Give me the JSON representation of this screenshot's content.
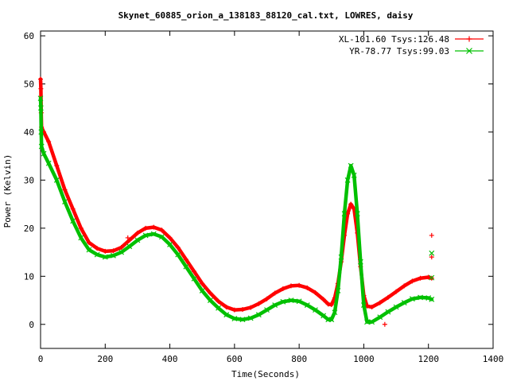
{
  "chart_data": {
    "type": "line",
    "title": "Skynet_60885_orion_a_138183_88120_cal.txt, LOWRES, daisy",
    "xlabel": "Time(Seconds)",
    "ylabel": "Power (Kelvin)",
    "xlim": [
      0,
      1400
    ],
    "ylim": [
      -5,
      61
    ],
    "x_ticks": [
      0,
      200,
      400,
      600,
      800,
      1000,
      1200,
      1400
    ],
    "y_ticks": [
      0,
      10,
      20,
      30,
      40,
      50,
      60
    ],
    "grid": false,
    "legend_position": "top-right",
    "series": [
      {
        "name": "XL-101.60 Tsys:126.48",
        "color": "#ff0000",
        "marker": "plus",
        "points": [
          [
            0,
            51
          ],
          [
            1,
            49
          ],
          [
            2,
            44
          ],
          [
            3,
            41
          ],
          [
            10,
            40
          ],
          [
            25,
            38
          ],
          [
            50,
            33
          ],
          [
            75,
            28
          ],
          [
            100,
            24
          ],
          [
            125,
            20
          ],
          [
            150,
            17
          ],
          [
            175,
            15.8
          ],
          [
            200,
            15.2
          ],
          [
            225,
            15.3
          ],
          [
            250,
            16
          ],
          [
            275,
            17.5
          ],
          [
            300,
            19
          ],
          [
            325,
            20
          ],
          [
            350,
            20.2
          ],
          [
            375,
            19.6
          ],
          [
            400,
            18
          ],
          [
            425,
            16
          ],
          [
            450,
            13.5
          ],
          [
            475,
            11
          ],
          [
            500,
            8.5
          ],
          [
            525,
            6.5
          ],
          [
            550,
            4.8
          ],
          [
            575,
            3.6
          ],
          [
            600,
            3
          ],
          [
            625,
            3.1
          ],
          [
            650,
            3.5
          ],
          [
            675,
            4.3
          ],
          [
            700,
            5.3
          ],
          [
            725,
            6.5
          ],
          [
            750,
            7.4
          ],
          [
            775,
            8
          ],
          [
            800,
            8.1
          ],
          [
            825,
            7.6
          ],
          [
            850,
            6.6
          ],
          [
            875,
            5.2
          ],
          [
            890,
            4.2
          ],
          [
            900,
            4.1
          ],
          [
            910,
            5.5
          ],
          [
            920,
            8.5
          ],
          [
            930,
            13
          ],
          [
            940,
            18.5
          ],
          [
            950,
            23
          ],
          [
            960,
            25
          ],
          [
            970,
            24
          ],
          [
            980,
            19
          ],
          [
            990,
            12
          ],
          [
            1000,
            6
          ],
          [
            1010,
            3.8
          ],
          [
            1025,
            3.6
          ],
          [
            1050,
            4.5
          ],
          [
            1075,
            5.6
          ],
          [
            1100,
            6.8
          ],
          [
            1125,
            8
          ],
          [
            1150,
            9
          ],
          [
            1175,
            9.6
          ],
          [
            1200,
            9.8
          ],
          [
            1210,
            9.6
          ]
        ]
      },
      {
        "name": "YR-78.77 Tsys:99.03",
        "color": "#00c000",
        "marker": "cross",
        "points": [
          [
            0,
            47
          ],
          [
            1,
            45
          ],
          [
            2,
            40
          ],
          [
            3,
            37
          ],
          [
            10,
            35.5
          ],
          [
            25,
            33.5
          ],
          [
            50,
            30
          ],
          [
            75,
            25.5
          ],
          [
            100,
            21.5
          ],
          [
            125,
            18
          ],
          [
            150,
            15.5
          ],
          [
            175,
            14.5
          ],
          [
            200,
            14
          ],
          [
            225,
            14.3
          ],
          [
            250,
            15
          ],
          [
            275,
            16.2
          ],
          [
            300,
            17.5
          ],
          [
            325,
            18.5
          ],
          [
            350,
            18.8
          ],
          [
            375,
            18.2
          ],
          [
            400,
            16.6
          ],
          [
            425,
            14.5
          ],
          [
            450,
            12
          ],
          [
            475,
            9.5
          ],
          [
            500,
            7
          ],
          [
            525,
            5
          ],
          [
            550,
            3.4
          ],
          [
            575,
            2
          ],
          [
            600,
            1.2
          ],
          [
            625,
            1
          ],
          [
            650,
            1.3
          ],
          [
            675,
            2
          ],
          [
            700,
            3
          ],
          [
            725,
            4
          ],
          [
            750,
            4.7
          ],
          [
            775,
            5
          ],
          [
            800,
            4.8
          ],
          [
            825,
            4
          ],
          [
            850,
            3
          ],
          [
            875,
            1.8
          ],
          [
            890,
            1
          ],
          [
            900,
            1
          ],
          [
            910,
            2.5
          ],
          [
            920,
            7
          ],
          [
            930,
            14
          ],
          [
            940,
            23
          ],
          [
            950,
            30
          ],
          [
            960,
            33
          ],
          [
            970,
            31
          ],
          [
            980,
            23
          ],
          [
            990,
            13
          ],
          [
            1000,
            4
          ],
          [
            1010,
            0.5
          ],
          [
            1025,
            0.5
          ],
          [
            1050,
            1.5
          ],
          [
            1075,
            2.6
          ],
          [
            1100,
            3.6
          ],
          [
            1125,
            4.5
          ],
          [
            1150,
            5.3
          ],
          [
            1175,
            5.6
          ],
          [
            1200,
            5.5
          ],
          [
            1210,
            5.2
          ]
        ]
      }
    ],
    "outliers": [
      {
        "series": 0,
        "x": 270,
        "y": 18
      },
      {
        "series": 0,
        "x": 1065,
        "y": 0
      },
      {
        "series": 0,
        "x": 1210,
        "y": 18.5
      },
      {
        "series": 0,
        "x": 1210,
        "y": 14
      },
      {
        "series": 1,
        "x": 1210,
        "y": 14.8
      },
      {
        "series": 1,
        "x": 1210,
        "y": 9.7
      }
    ]
  }
}
